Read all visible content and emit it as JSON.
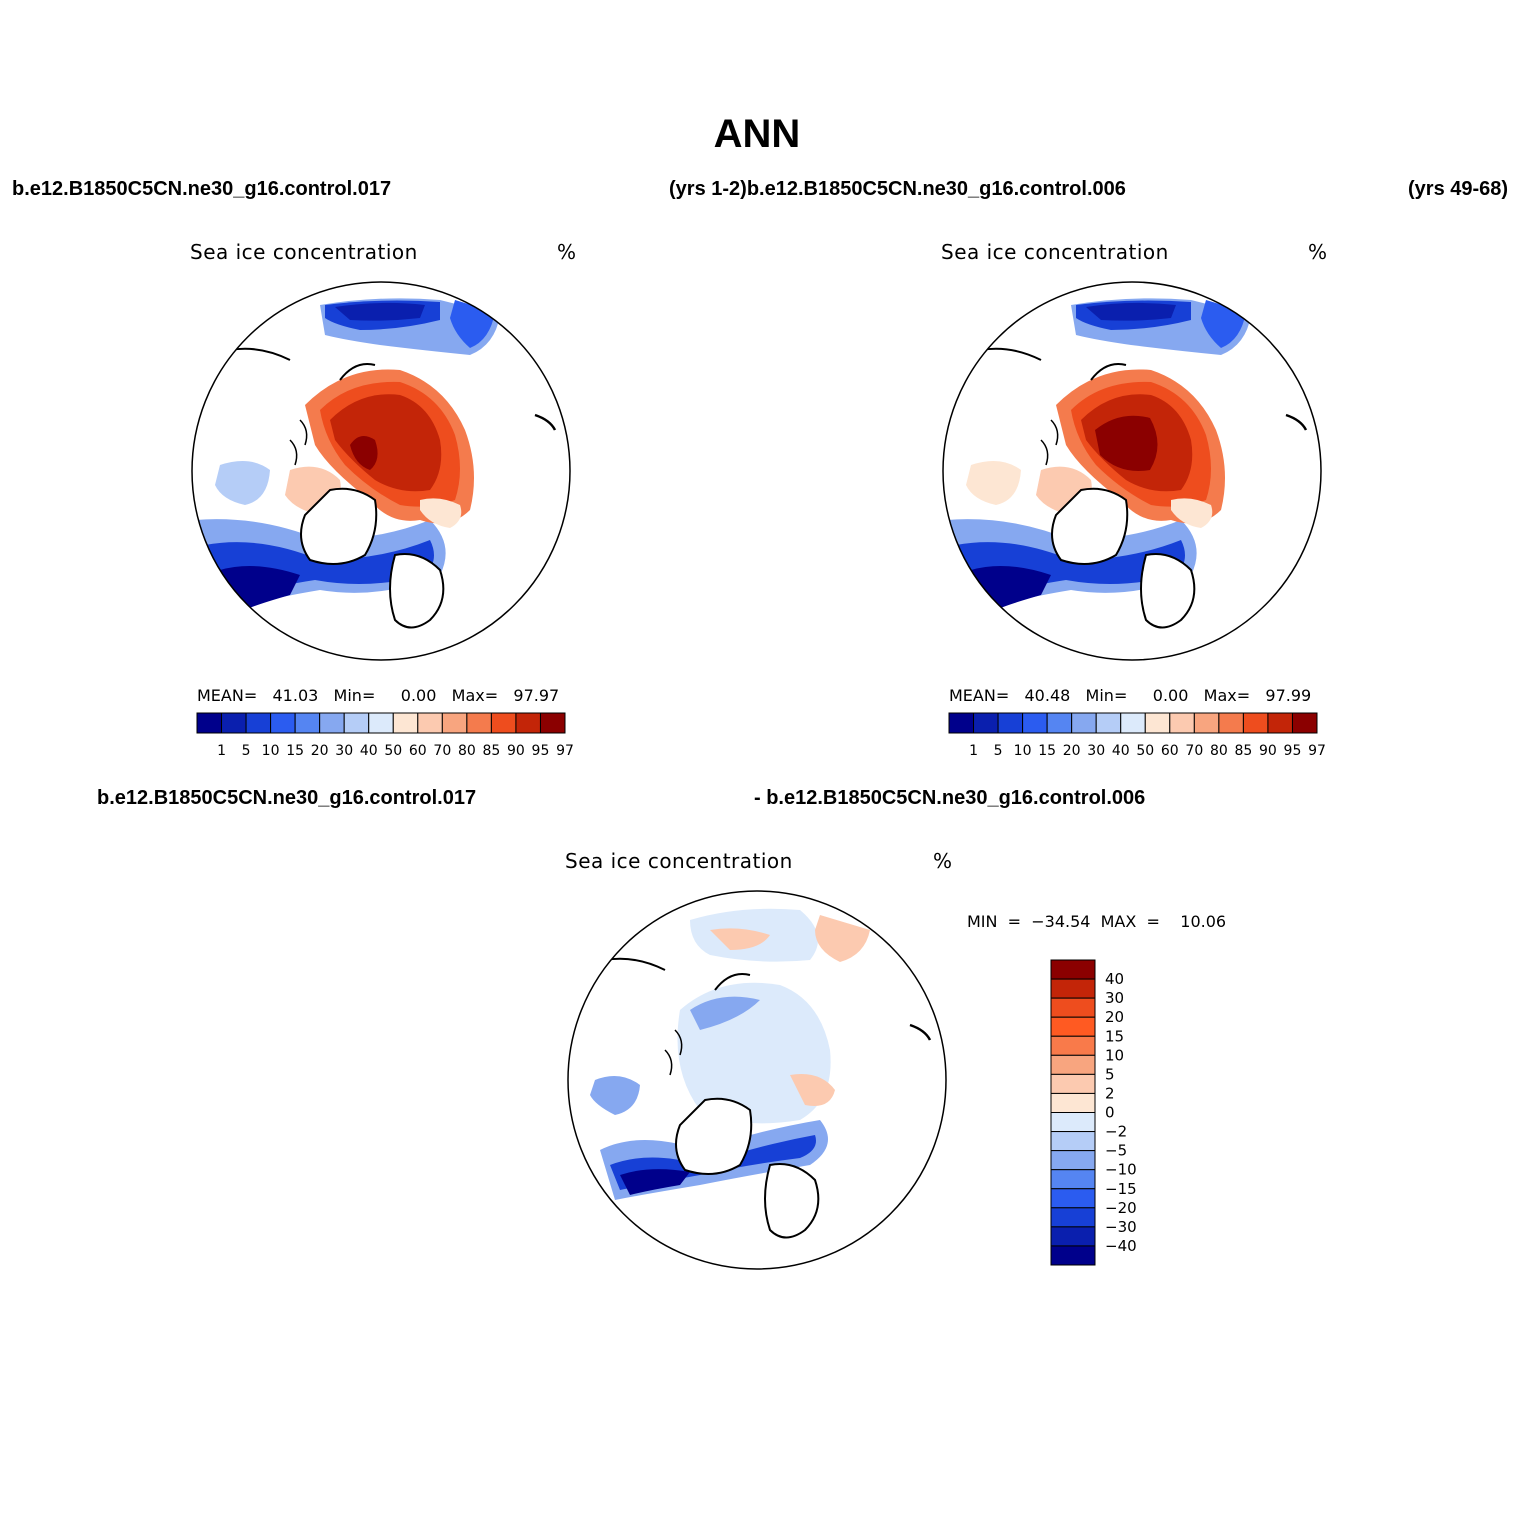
{
  "title": "ANN",
  "headers": {
    "top_left": "b.e12.B1850C5CN.ne30_g16.control.017",
    "top_mid": "(yrs 1-2)b.e12.B1850C5CN.ne30_g16.control.006",
    "top_right": "(yrs 49-68)",
    "bottom_left": "b.e12.B1850C5CN.ne30_g16.control.017",
    "bottom_mid": "- b.e12.B1850C5CN.ne30_g16.control.006"
  },
  "panels": [
    {
      "variable": "Sea ice concentration",
      "units": "%",
      "stats_text": "MEAN=   41.03   Min=     0.00   Max=   97.97",
      "mean": 41.03,
      "min": 0.0,
      "max": 97.97
    },
    {
      "variable": "Sea ice concentration",
      "units": "%",
      "stats_text": "MEAN=   40.48   Min=     0.00   Max=   97.99",
      "mean": 40.48,
      "min": 0.0,
      "max": 97.99
    },
    {
      "variable": "Sea ice concentration",
      "units": "%",
      "stats_text": "MIN  =  −34.54  MAX  =    10.06",
      "min": -34.54,
      "max": 10.06
    }
  ],
  "colorbar_abs": {
    "labels": [
      "1",
      "5",
      "10",
      "15",
      "20",
      "30",
      "40",
      "50",
      "60",
      "70",
      "80",
      "85",
      "90",
      "95",
      "97"
    ],
    "colors": [
      "#00008b",
      "#0a1fae",
      "#1740d6",
      "#2b5cf0",
      "#5585f2",
      "#86a8f0",
      "#b5cdf7",
      "#dceafb",
      "#fde6d3",
      "#fccab0",
      "#f8a57f",
      "#f47b4d",
      "#ee4d1e",
      "#c32508",
      "#8b0000"
    ]
  },
  "colorbar_diff": {
    "labels": [
      "40",
      "30",
      "20",
      "15",
      "10",
      "5",
      "2",
      "0",
      "−2",
      "−5",
      "−10",
      "−15",
      "−20",
      "−30",
      "−40"
    ],
    "colors": [
      "#8b0000",
      "#c32508",
      "#ee4d1e",
      "#ff5a22",
      "#f97a4a",
      "#f8a57f",
      "#fccab0",
      "#fde6d3",
      "#dceafb",
      "#b5cdf7",
      "#86a8f0",
      "#5585f2",
      "#2b5cf0",
      "#1740d6",
      "#0a1fae",
      "#00008b"
    ]
  }
}
